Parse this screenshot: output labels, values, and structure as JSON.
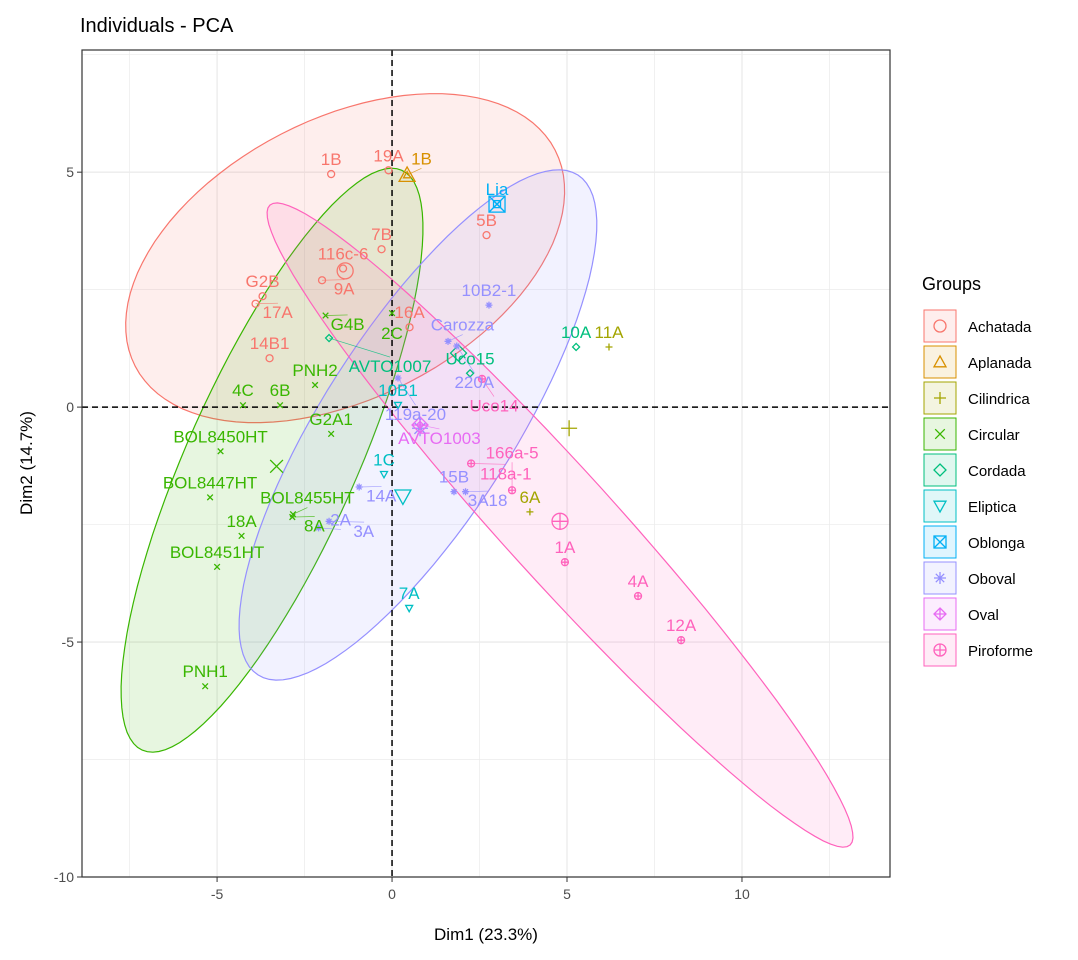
{
  "chart_data": {
    "type": "scatter",
    "title": "Individuals - PCA",
    "xlabel": "Dim1 (23.3%)",
    "ylabel": "Dim2 (14.7%)",
    "xlim": [
      -8.86,
      14.23
    ],
    "ylim": [
      -10,
      7.6
    ],
    "xticks": [
      -5,
      0,
      5,
      10
    ],
    "yticks": [
      -10,
      -5,
      0,
      5
    ],
    "grid": true,
    "legend": {
      "title": "Groups",
      "position": "right"
    },
    "groups": [
      {
        "name": "Achatada",
        "color": "#F8766D",
        "shape": "circle",
        "points": [
          {
            "label": "1B",
            "x": -1.74,
            "y": 4.96
          },
          {
            "label": "19A",
            "x": -0.1,
            "y": 5.04
          },
          {
            "label": "7B",
            "x": -0.3,
            "y": 3.36
          },
          {
            "label": "116c-6",
            "x": -1.4,
            "y": 2.95
          },
          {
            "label": "9A",
            "x": -2.0,
            "y": 2.7
          },
          {
            "label": "G2B",
            "x": -3.7,
            "y": 2.36
          },
          {
            "label": "17A",
            "x": -3.9,
            "y": 2.2
          },
          {
            "label": "14B1",
            "x": -3.5,
            "y": 1.04
          },
          {
            "label": "5B",
            "x": 2.7,
            "y": 3.66
          },
          {
            "label": "16A",
            "x": 0.5,
            "y": 1.7
          }
        ],
        "centroid": {
          "x": -1.34,
          "y": 2.9
        },
        "ellipse": {
          "center": [
            -1.34,
            3.17
          ],
          "axis1": [
            6.0,
            2.3
          ],
          "axis2": [
            1.83,
            -2.64
          ]
        }
      },
      {
        "name": "Aplanada",
        "color": "#D89000",
        "shape": "triangle",
        "points": [
          {
            "label": "1B",
            "x": 0.43,
            "y": 4.94
          }
        ],
        "centroid": {
          "x": 0.43,
          "y": 4.94
        }
      },
      {
        "name": "Cilindrica",
        "color": "#A3A500",
        "shape": "plus",
        "points": [
          {
            "label": "11A",
            "x": 6.2,
            "y": 1.28
          },
          {
            "label": "6A",
            "x": 3.94,
            "y": -2.23
          }
        ],
        "centroid": {
          "x": 5.06,
          "y": -0.45
        }
      },
      {
        "name": "Circular",
        "color": "#39B600",
        "shape": "cross",
        "points": [
          {
            "label": "G4B",
            "x": -1.9,
            "y": 1.95
          },
          {
            "label": "2C",
            "x": 0.0,
            "y": 2.0
          },
          {
            "label": "PNH2",
            "x": -2.2,
            "y": 0.47
          },
          {
            "label": "4C",
            "x": -4.26,
            "y": 0.04
          },
          {
            "label": "6B",
            "x": -3.2,
            "y": 0.04
          },
          {
            "label": "G2A1",
            "x": -1.74,
            "y": -0.57
          },
          {
            "label": "BOL8450HT",
            "x": -4.9,
            "y": -0.94
          },
          {
            "label": "BOL8447HT",
            "x": -5.2,
            "y": -1.92
          },
          {
            "label": "BOL8455HT",
            "x": -2.83,
            "y": -2.28
          },
          {
            "label": "8A",
            "x": -2.85,
            "y": -2.34
          },
          {
            "label": "18A",
            "x": -4.3,
            "y": -2.74
          },
          {
            "label": "BOL8451HT",
            "x": -5.0,
            "y": -3.4
          },
          {
            "label": "PNH1",
            "x": -5.34,
            "y": -5.94
          }
        ],
        "centroid": {
          "x": -3.3,
          "y": -1.26
        },
        "ellipse": {
          "center": [
            -3.43,
            -1.13
          ],
          "axis1": [
            3.71,
            6.17
          ],
          "axis2": [
            2.2,
            -0.74
          ]
        }
      },
      {
        "name": "Cordada",
        "color": "#00BF7D",
        "shape": "diamond",
        "points": [
          {
            "label": "AVTO1007",
            "x": -1.8,
            "y": 1.47
          },
          {
            "label": "10A",
            "x": 5.26,
            "y": 1.28
          },
          {
            "label": "Uco15",
            "x": 2.23,
            "y": 0.72
          }
        ],
        "centroid": {
          "x": 1.9,
          "y": 1.15
        }
      },
      {
        "name": "Eliptica",
        "color": "#00BFC4",
        "shape": "triangle-down",
        "points": [
          {
            "label": "10B1",
            "x": 0.17,
            "y": 0.04
          },
          {
            "label": "1C",
            "x": -0.23,
            "y": -1.43
          },
          {
            "label": "7A",
            "x": 0.49,
            "y": -4.28
          }
        ],
        "centroid": {
          "x": 0.31,
          "y": -1.9
        }
      },
      {
        "name": "Oblonga",
        "color": "#00B0F6",
        "shape": "square",
        "points": [
          {
            "label": "Lia",
            "x": 3.0,
            "y": 4.32
          }
        ],
        "centroid": {
          "x": 3.0,
          "y": 4.32
        }
      },
      {
        "name": "Oboval",
        "color": "#9590FF",
        "shape": "star",
        "points": [
          {
            "label": "10B2-1",
            "x": 2.77,
            "y": 2.17
          },
          {
            "label": "Carozza",
            "x": 1.6,
            "y": 1.4
          },
          {
            "label": "220A",
            "x": 1.85,
            "y": 1.3
          },
          {
            "label": "119a-20",
            "x": 0.17,
            "y": 0.62
          },
          {
            "label": "14A",
            "x": -0.94,
            "y": -1.7
          },
          {
            "label": "2A",
            "x": -2.1,
            "y": -2.57
          },
          {
            "label": "3A",
            "x": -1.8,
            "y": -2.43
          },
          {
            "label": "15B",
            "x": 1.77,
            "y": -1.8
          },
          {
            "label": "3A18",
            "x": 2.1,
            "y": -1.8
          }
        ],
        "centroid": {
          "x": 0.8,
          "y": -0.45
        },
        "ellipse": {
          "center": [
            0.74,
            -0.38
          ],
          "axis1": [
            4.57,
            5.32
          ],
          "axis2": [
            2.29,
            -1.09
          ]
        }
      },
      {
        "name": "Oval",
        "color": "#E76BF3",
        "shape": "diamond-plus",
        "points": [
          {
            "label": "AVTO1003",
            "x": 0.8,
            "y": -0.38
          }
        ],
        "centroid": {
          "x": 0.8,
          "y": -0.38
        }
      },
      {
        "name": "Piroforme",
        "color": "#FF62BC",
        "shape": "circle-plus",
        "points": [
          {
            "label": "Uco14",
            "x": 2.57,
            "y": 0.6
          },
          {
            "label": "118a-1",
            "x": 2.26,
            "y": -1.2
          },
          {
            "label": "166a-5",
            "x": 3.43,
            "y": -1.77
          },
          {
            "label": "1A",
            "x": 4.94,
            "y": -3.3
          },
          {
            "label": "4A",
            "x": 7.03,
            "y": -4.02
          },
          {
            "label": "12A",
            "x": 8.26,
            "y": -4.96
          }
        ],
        "centroid": {
          "x": 4.8,
          "y": -2.43
        },
        "ellipse": {
          "center": [
            4.8,
            -2.51
          ],
          "axis1": [
            8.29,
            -6.81
          ],
          "axis2": [
            -1.17,
            -0.79
          ]
        }
      }
    ]
  }
}
